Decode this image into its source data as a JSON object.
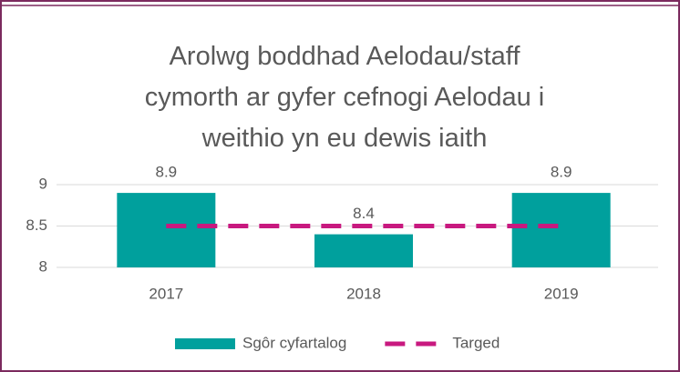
{
  "chart_data": {
    "type": "bar",
    "title": "Arolwg boddhad Aelodau/staff cymorth ar gyfer cefnogi Aelodau i weithio yn eu dewis iaith",
    "categories": [
      "2017",
      "2018",
      "2019"
    ],
    "series": [
      {
        "name": "Sgôr cyfartalog",
        "color": "#00a09d",
        "values": [
          8.9,
          8.4,
          8.9
        ],
        "type": "bar"
      },
      {
        "name": "Targed",
        "color": "#c8197f",
        "values": [
          8.5,
          8.5,
          8.5
        ],
        "type": "line",
        "dashed": true
      }
    ],
    "ylim": [
      8,
      9
    ],
    "yticks": [
      8,
      8.5,
      9
    ],
    "grid": true,
    "legend": "bottom"
  }
}
